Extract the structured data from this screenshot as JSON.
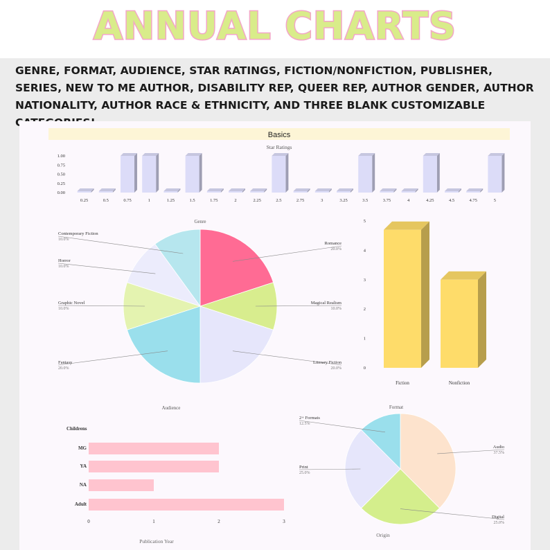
{
  "header": {
    "title": "ANNUAL CHARTS"
  },
  "description": "GENRE, FORMAT, AUDIENCE, STAR RATINGS, FICTION/NONFICTION, PUBLISHER, SERIES, NEW TO ME AUTHOR, DISABILITY REP, QUEER REP, AUTHOR GENDER, AUTHOR NATIONALITY, AUTHOR RACE & ETHNICITY, AND THREE BLANK CUSTOMIZABLE CATEGORIES!",
  "dashboard": {
    "section_title": "Basics",
    "footer_label": "Publication Year",
    "origin_label": "Origin"
  },
  "colors": {
    "title_fill": "#d9ec8a",
    "title_outline": "#f3a6c8",
    "lavender_bar": "#dcdcf8",
    "yellow_bar": "#fedc6a",
    "pink_bar": "#ffc4cf",
    "section_band": "#fdf5d6"
  },
  "chart_data": [
    {
      "type": "bar",
      "title": "Star Ratings",
      "categories": [
        "0.25",
        "0.5",
        "0.75",
        "1",
        "1.25",
        "1.5",
        "1.75",
        "2",
        "2.25",
        "2.5",
        "2.75",
        "3",
        "3.25",
        "3.5",
        "3.75",
        "4",
        "4.25",
        "4.5",
        "4.75",
        "5"
      ],
      "values": [
        0,
        0,
        1,
        1,
        0,
        1,
        0,
        0,
        0,
        1,
        0,
        0,
        0,
        1,
        0,
        0,
        1,
        0,
        0,
        1
      ],
      "yticks": [
        "1.00",
        "0.75",
        "0.50",
        "0.25",
        "0.00"
      ],
      "ylim": [
        0,
        1
      ]
    },
    {
      "type": "pie",
      "title": "Genre",
      "slices": [
        {
          "label": "Romance",
          "pct": "20.0%",
          "value": 20,
          "color": "#ff6b94"
        },
        {
          "label": "Magical Realism",
          "pct": "10.0%",
          "value": 10,
          "color": "#d8ed8e"
        },
        {
          "label": "Literary Fiction",
          "pct": "20.0%",
          "value": 20,
          "color": "#e6e6fb"
        },
        {
          "label": "Fantasy",
          "pct": "20.0%",
          "value": 20,
          "color": "#9adfec"
        },
        {
          "label": "Graphic Novel",
          "pct": "10.0%",
          "value": 10,
          "color": "#e4f3b0"
        },
        {
          "label": "Horror",
          "pct": "10.0%",
          "value": 10,
          "color": "#ececfc"
        },
        {
          "label": "Contemporary Fiction",
          "pct": "10.0%",
          "value": 10,
          "color": "#b6e6ee"
        }
      ]
    },
    {
      "type": "bar",
      "title": "",
      "categories": [
        "Fiction",
        "Nonfiction"
      ],
      "values": [
        4.7,
        3
      ],
      "yticks": [
        "5",
        "4",
        "3",
        "2",
        "1",
        "0"
      ],
      "ylim": [
        0,
        5
      ]
    },
    {
      "type": "bar",
      "orientation": "horizontal",
      "title": "Audience",
      "categories": [
        "Childrens",
        "MG",
        "YA",
        "NA",
        "Adult"
      ],
      "values": [
        0,
        2,
        2,
        1,
        3
      ],
      "xticks": [
        "0",
        "1",
        "2",
        "3"
      ],
      "xlim": [
        0,
        3
      ]
    },
    {
      "type": "pie",
      "title": "Format",
      "slices": [
        {
          "label": "Audio",
          "pct": "37.5%",
          "value": 37.5,
          "color": "#fde3cd"
        },
        {
          "label": "Digital",
          "pct": "25.0%",
          "value": 25,
          "color": "#d4ee8c"
        },
        {
          "label": "Print",
          "pct": "25.0%",
          "value": 25,
          "color": "#e6e6fb"
        },
        {
          "label": "2+ Formats",
          "pct": "12.5%",
          "value": 12.5,
          "color": "#9adfec"
        }
      ]
    }
  ]
}
